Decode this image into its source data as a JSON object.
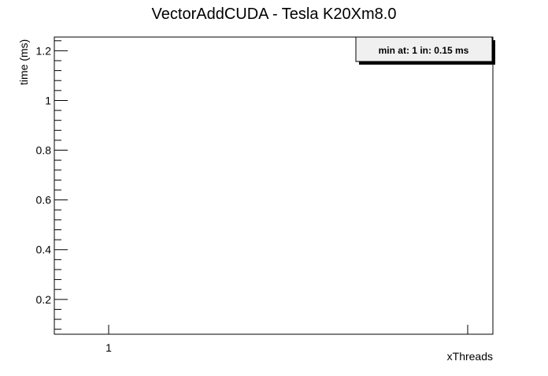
{
  "chart_data": {
    "type": "line",
    "title": "VectorAddCUDA - Tesla K20Xm8.0",
    "xlabel": "xThreads",
    "ylabel": "time (ms)",
    "x_ticks": [
      1
    ],
    "y_ticks": [
      "0.2",
      "0.4",
      "0.6",
      "0.8",
      "1",
      "1.2"
    ],
    "ylim": [
      0.06,
      1.255
    ],
    "x": [
      1
    ],
    "y": [
      0.15
    ],
    "legend": {
      "text": "min at: 1 in: 0.15 ms",
      "position": "top-right"
    },
    "grid": false
  }
}
